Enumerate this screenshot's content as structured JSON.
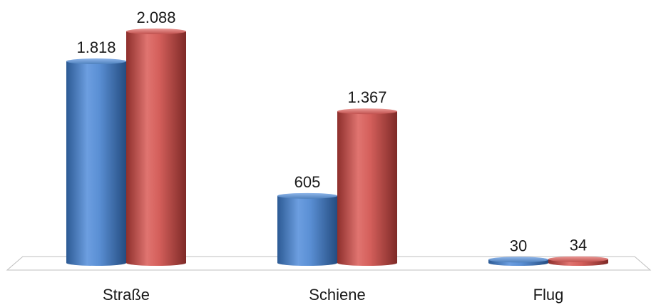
{
  "chart_data": {
    "type": "bar",
    "style": "3d-cylinder",
    "categories": [
      "Straße",
      "Schiene",
      "Flug"
    ],
    "series": [
      {
        "values": [
          1818,
          605,
          30
        ],
        "labels": [
          "1.818",
          "605",
          "30"
        ],
        "color": "#4f81bd"
      },
      {
        "values": [
          2088,
          1367,
          34
        ],
        "labels": [
          "2.088",
          "1.367",
          "34"
        ],
        "color": "#c0504d"
      }
    ],
    "ylim": [
      0,
      2088
    ],
    "grid": false,
    "legend": "none",
    "title": "",
    "xlabel": "",
    "ylabel": ""
  }
}
